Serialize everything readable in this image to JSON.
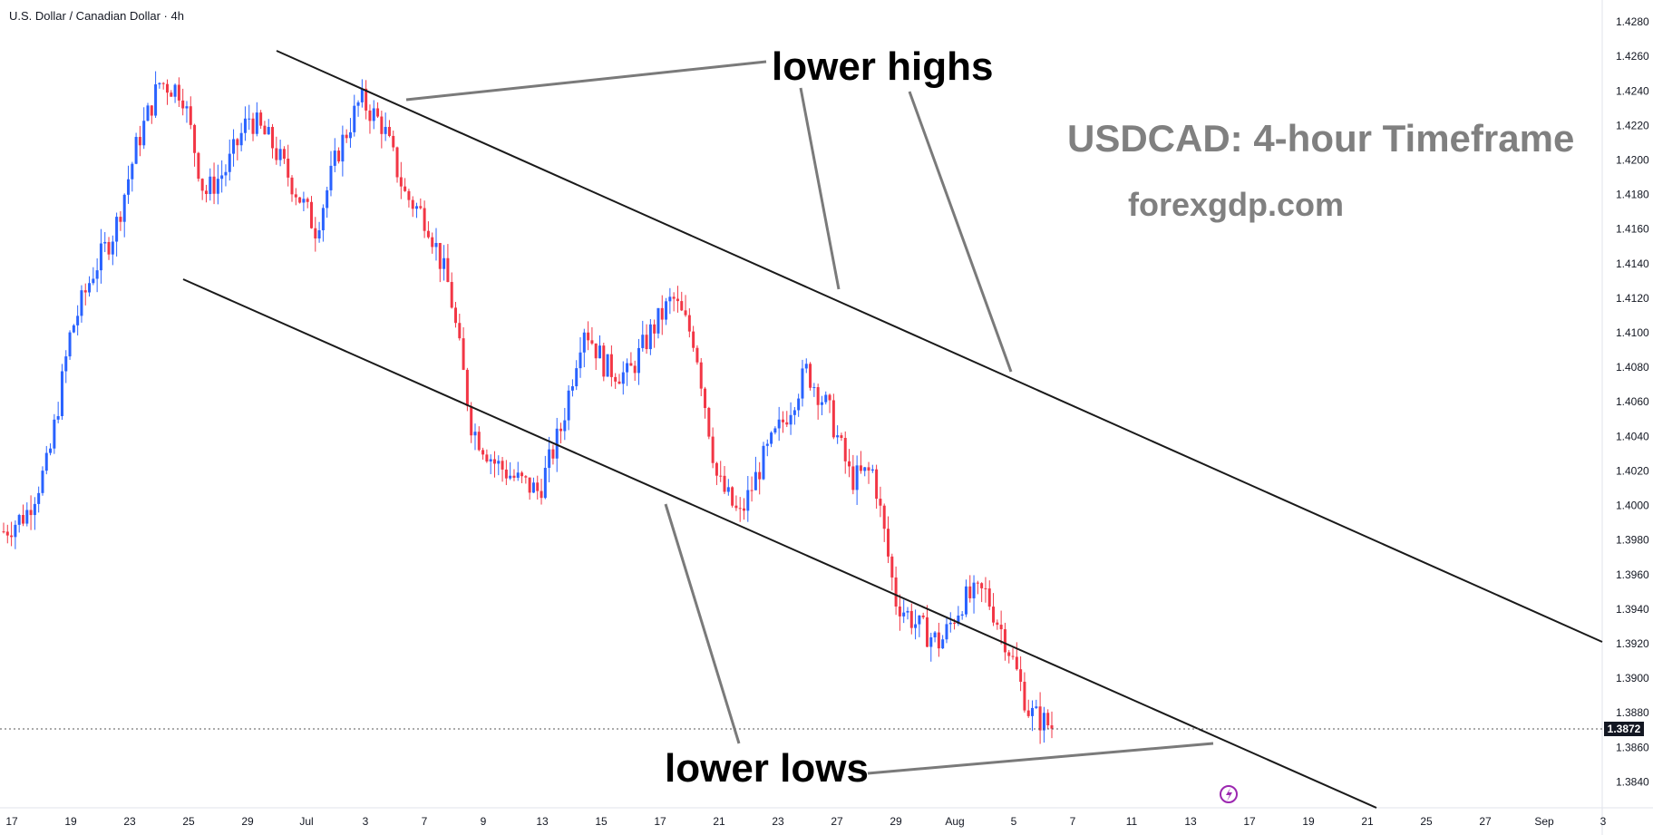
{
  "header": {
    "symbol_title": "U.S. Dollar / Canadian Dollar · 4h"
  },
  "annotations": {
    "lower_highs": "lower highs",
    "lower_lows": "lower lows",
    "watermark_title": "USDCAD: 4-hour Timeframe",
    "watermark_site": "forexgdp.com"
  },
  "current_price": "1.3872",
  "colors": {
    "up": "#2962ff",
    "down": "#f23645",
    "line": "#1a1a1a",
    "pointer": "#7a7a7a",
    "watermark": "#808080",
    "axis_text": "#131722",
    "event_icon": "#9c27b0"
  },
  "chart_data": {
    "type": "candlestick",
    "title": "U.S. Dollar / Canadian Dollar · 4h",
    "ylim": [
      1.3825,
      1.429
    ],
    "y_ticks": [
      "1.4280",
      "1.4260",
      "1.4240",
      "1.4220",
      "1.4200",
      "1.4180",
      "1.4160",
      "1.4140",
      "1.4120",
      "1.4100",
      "1.4080",
      "1.4060",
      "1.4040",
      "1.4020",
      "1.4000",
      "1.3980",
      "1.3960",
      "1.3940",
      "1.3920",
      "1.3900",
      "1.3880",
      "1.3860",
      "1.3840"
    ],
    "x_ticks": [
      "17",
      "19",
      "23",
      "25",
      "29",
      "Jul",
      "3",
      "7",
      "9",
      "13",
      "15",
      "17",
      "21",
      "23",
      "27",
      "29",
      "Aug",
      "5",
      "7",
      "11",
      "13",
      "17",
      "19",
      "21",
      "25",
      "27",
      "Sep",
      "3"
    ],
    "anchors": [
      [
        1.399,
        1.3985
      ],
      [
        1.3995,
        1.3995
      ],
      [
        1.403,
        1.4025
      ],
      [
        1.41,
        1.41
      ],
      [
        1.414,
        1.4135
      ],
      [
        1.4165,
        1.416
      ],
      [
        1.4215,
        1.421
      ],
      [
        1.424,
        1.4245
      ],
      [
        1.4245,
        1.424
      ],
      [
        1.4185,
        1.418
      ],
      [
        1.419,
        1.4195
      ],
      [
        1.4215,
        1.4225
      ],
      [
        1.42,
        1.421
      ],
      [
        1.419,
        1.4185
      ],
      [
        1.4175,
        1.416
      ],
      [
        1.42,
        1.4205
      ],
      [
        1.4225,
        1.4235
      ],
      [
        1.421,
        1.422
      ],
      [
        1.419,
        1.418
      ],
      [
        1.417,
        1.4165
      ],
      [
        1.413,
        1.4125
      ],
      [
        1.405,
        1.4045
      ],
      [
        1.403,
        1.4025
      ],
      [
        1.402,
        1.4015
      ],
      [
        1.401,
        1.4008
      ],
      [
        1.404,
        1.4045
      ],
      [
        1.41,
        1.4105
      ],
      [
        1.409,
        1.408
      ],
      [
        1.408,
        1.4075
      ],
      [
        1.4095,
        1.41
      ],
      [
        1.4125,
        1.412
      ],
      [
        1.41,
        1.4095
      ],
      [
        1.402,
        1.4015
      ],
      [
        1.3995,
        1.3993
      ],
      [
        1.402,
        1.4025
      ],
      [
        1.4045,
        1.405
      ],
      [
        1.4075,
        1.4078
      ],
      [
        1.406,
        1.4055
      ],
      [
        1.401,
        1.4015
      ],
      [
        1.4025,
        1.402
      ],
      [
        1.395,
        1.3945
      ],
      [
        1.3935,
        1.393
      ],
      [
        1.3925,
        1.392
      ],
      [
        1.394,
        1.3945
      ],
      [
        1.3955,
        1.395
      ],
      [
        1.393,
        1.392
      ],
      [
        1.389,
        1.388
      ],
      [
        1.3872,
        1.3872
      ]
    ],
    "trendlines": [
      {
        "name": "upper channel line",
        "from": [
          "21 Jun",
          1.4258
        ],
        "to": [
          "3 Sep",
          1.3917
        ]
      },
      {
        "name": "lower channel line",
        "from": [
          "23 Jun",
          1.4145
        ],
        "to": [
          "23 Aug",
          1.3825
        ]
      }
    ],
    "grid": false
  }
}
